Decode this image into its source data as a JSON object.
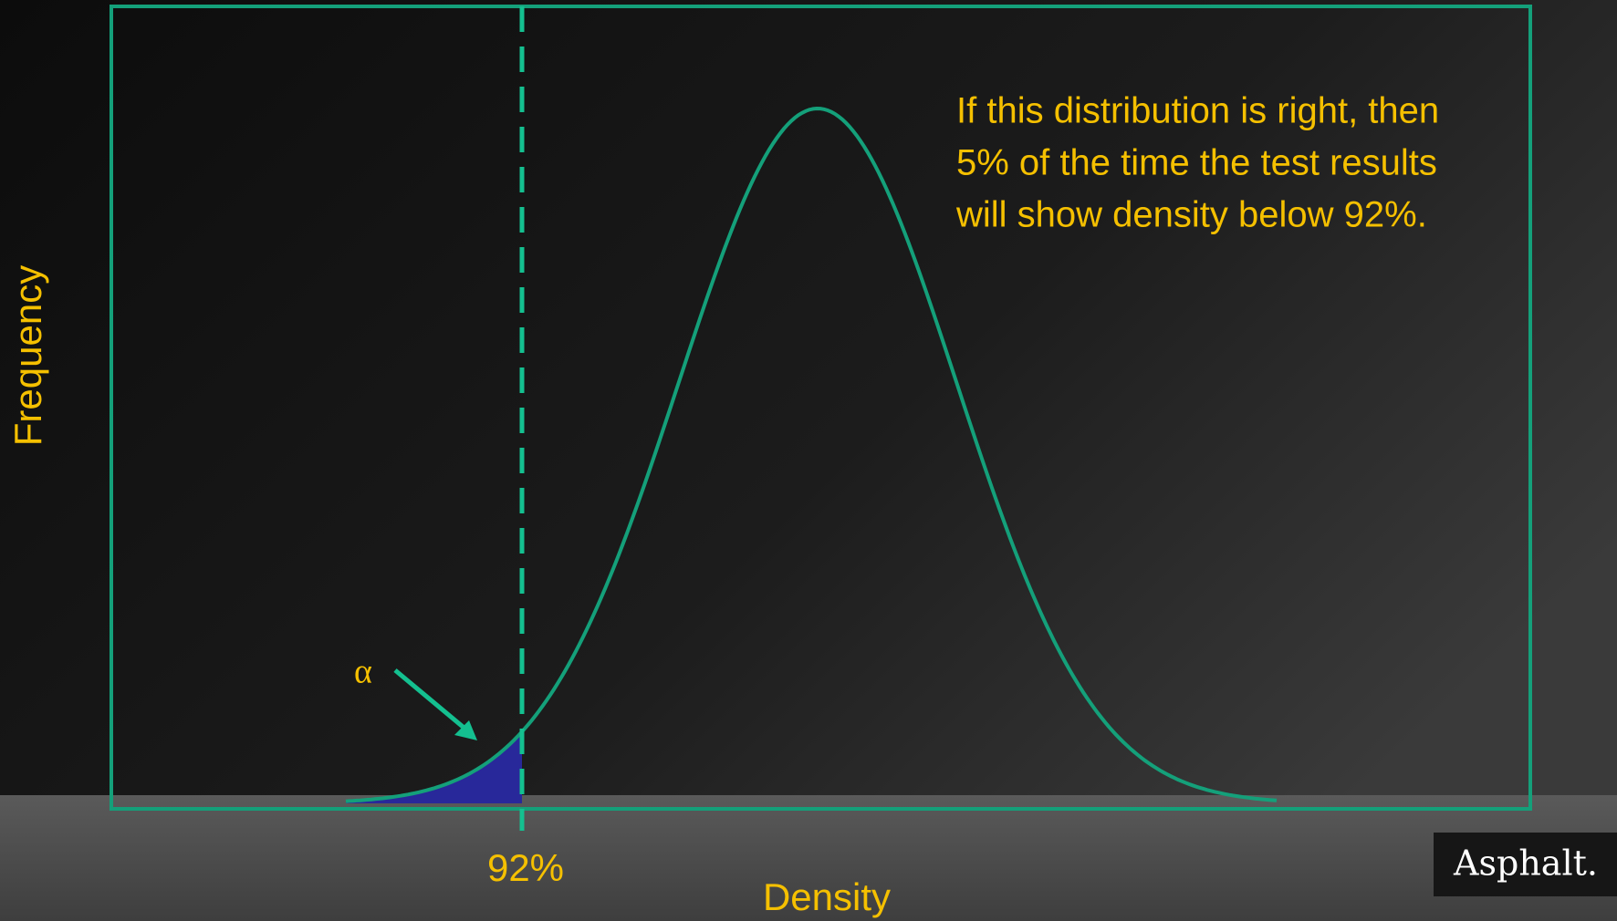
{
  "axes": {
    "y_label": "Frequency",
    "x_label": "Density"
  },
  "threshold_label": "92%",
  "alpha_label": "α",
  "annotation": {
    "lines": [
      "If this distribution is right, then",
      "5% of the time the test results",
      "will show density below 92%."
    ]
  },
  "logo": "Asphalt."
}
